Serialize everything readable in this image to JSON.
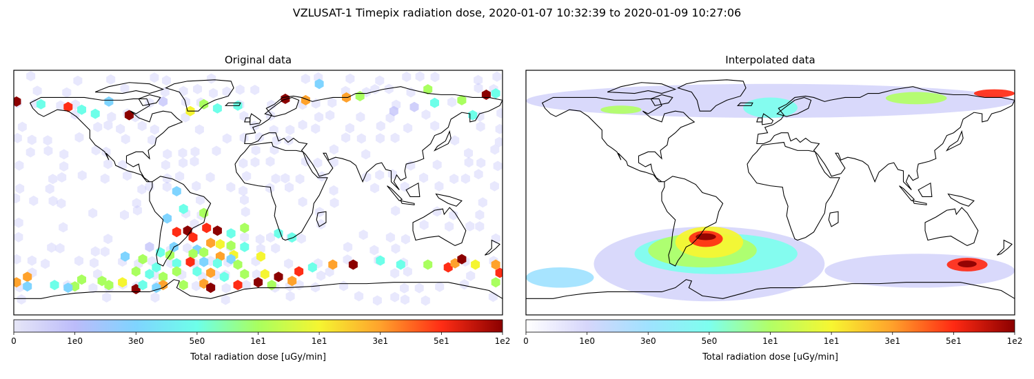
{
  "figure": {
    "suptitle": "VZLUSAT-1 Timepix radiation dose, 2020-01-07 10:32:39 to 2020-01-09 10:27:06"
  },
  "chart_data": [
    {
      "type": "heatmap",
      "title": "Original data",
      "xlim": [
        -180,
        180
      ],
      "ylim": [
        -90,
        90
      ],
      "projection": "plate-carree world map with coastlines",
      "marker": "hexagon",
      "colorbar": {
        "label": "Total radiation dose [uGy/min]",
        "tick_labels": [
          "0",
          "1e0",
          "3e0",
          "5e0",
          "1e1",
          "1e1",
          "3e1",
          "5e1",
          "1e2"
        ],
        "colormap": [
          "#e6e6f7",
          "#bcbcfa",
          "#7fd4ff",
          "#6dffe9",
          "#a9ff5f",
          "#f5f531",
          "#ffa22c",
          "#ff2d15",
          "#8b0000"
        ]
      },
      "points": [
        {
          "lon": -178,
          "lat": 67,
          "level": 8
        },
        {
          "lon": -160,
          "lat": 65,
          "level": 3
        },
        {
          "lon": -140,
          "lat": 63,
          "level": 7
        },
        {
          "lon": -130,
          "lat": 61,
          "level": 3
        },
        {
          "lon": -120,
          "lat": 58,
          "level": 3
        },
        {
          "lon": -110,
          "lat": 67,
          "level": 2
        },
        {
          "lon": -95,
          "lat": 57,
          "level": 8
        },
        {
          "lon": -70,
          "lat": 67,
          "level": 1
        },
        {
          "lon": -50,
          "lat": 60,
          "level": 5
        },
        {
          "lon": -40,
          "lat": 65,
          "level": 4
        },
        {
          "lon": -30,
          "lat": 62,
          "level": 3
        },
        {
          "lon": -15,
          "lat": 64,
          "level": 3
        },
        {
          "lon": 20,
          "lat": 69,
          "level": 8
        },
        {
          "lon": 35,
          "lat": 68,
          "level": 6
        },
        {
          "lon": 45,
          "lat": 80,
          "level": 2
        },
        {
          "lon": 65,
          "lat": 70,
          "level": 6
        },
        {
          "lon": 75,
          "lat": 71,
          "level": 4
        },
        {
          "lon": 100,
          "lat": 60,
          "level": 1
        },
        {
          "lon": 115,
          "lat": 63,
          "level": 1
        },
        {
          "lon": 125,
          "lat": 76,
          "level": 4
        },
        {
          "lon": 130,
          "lat": 66,
          "level": 3
        },
        {
          "lon": 150,
          "lat": 68,
          "level": 4
        },
        {
          "lon": 158,
          "lat": 57,
          "level": 3
        },
        {
          "lon": 168,
          "lat": 72,
          "level": 8
        },
        {
          "lon": 175,
          "lat": 73,
          "level": 3
        },
        {
          "lon": -60,
          "lat": 1,
          "level": 2
        },
        {
          "lon": -55,
          "lat": -12,
          "level": 3
        },
        {
          "lon": -67,
          "lat": -19,
          "level": 2
        },
        {
          "lon": -40,
          "lat": -15,
          "level": 4
        },
        {
          "lon": -60,
          "lat": -29,
          "level": 7
        },
        {
          "lon": -52,
          "lat": -28,
          "level": 8
        },
        {
          "lon": -48,
          "lat": -33,
          "level": 7
        },
        {
          "lon": -38,
          "lat": -26,
          "level": 7
        },
        {
          "lon": -30,
          "lat": -28,
          "level": 8
        },
        {
          "lon": -20,
          "lat": -30,
          "level": 3
        },
        {
          "lon": -10,
          "lat": -26,
          "level": 4
        },
        {
          "lon": 15,
          "lat": -30,
          "level": 3
        },
        {
          "lon": 25,
          "lat": -33,
          "level": 3
        },
        {
          "lon": -35,
          "lat": -37,
          "level": 6
        },
        {
          "lon": -28,
          "lat": -38,
          "level": 5
        },
        {
          "lon": -20,
          "lat": -39,
          "level": 4
        },
        {
          "lon": -10,
          "lat": -40,
          "level": 3
        },
        {
          "lon": -62,
          "lat": -40,
          "level": 2
        },
        {
          "lon": -45,
          "lat": -42,
          "level": 2
        },
        {
          "lon": -80,
          "lat": -40,
          "level": 1
        },
        {
          "lon": -72,
          "lat": -44,
          "level": 3
        },
        {
          "lon": -65,
          "lat": -46,
          "level": 4
        },
        {
          "lon": -48,
          "lat": -45,
          "level": 4
        },
        {
          "lon": -40,
          "lat": -44,
          "level": 4
        },
        {
          "lon": -28,
          "lat": -47,
          "level": 6
        },
        {
          "lon": -18,
          "lat": -46,
          "level": 5
        },
        {
          "lon": -50,
          "lat": -51,
          "level": 7
        },
        {
          "lon": -60,
          "lat": -52,
          "level": 3
        },
        {
          "lon": -40,
          "lat": -51,
          "level": 2
        },
        {
          "lon": -30,
          "lat": -52,
          "level": 3
        },
        {
          "lon": -20,
          "lat": -49,
          "level": 2
        },
        {
          "lon": -15,
          "lat": -53,
          "level": 4
        },
        {
          "lon": 2,
          "lat": -47,
          "level": 5
        },
        {
          "lon": -98,
          "lat": -47,
          "level": 2
        },
        {
          "lon": -85,
          "lat": -49,
          "level": 4
        },
        {
          "lon": -75,
          "lat": -55,
          "level": 3
        },
        {
          "lon": -90,
          "lat": -58,
          "level": 4
        },
        {
          "lon": -80,
          "lat": -60,
          "level": 3
        },
        {
          "lon": -70,
          "lat": -62,
          "level": 4
        },
        {
          "lon": -60,
          "lat": -58,
          "level": 4
        },
        {
          "lon": -45,
          "lat": -58,
          "level": 3
        },
        {
          "lon": -35,
          "lat": -59,
          "level": 6
        },
        {
          "lon": -25,
          "lat": -62,
          "level": 3
        },
        {
          "lon": -10,
          "lat": -60,
          "level": 4
        },
        {
          "lon": 5,
          "lat": -60,
          "level": 5
        },
        {
          "lon": 15,
          "lat": -62,
          "level": 8
        },
        {
          "lon": 30,
          "lat": -58,
          "level": 7
        },
        {
          "lon": 40,
          "lat": -55,
          "level": 3
        },
        {
          "lon": 55,
          "lat": -53,
          "level": 6
        },
        {
          "lon": 70,
          "lat": -53,
          "level": 8
        },
        {
          "lon": 90,
          "lat": -50,
          "level": 3
        },
        {
          "lon": 105,
          "lat": -53,
          "level": 3
        },
        {
          "lon": 125,
          "lat": -53,
          "level": 4
        },
        {
          "lon": 140,
          "lat": -55,
          "level": 7
        },
        {
          "lon": 145,
          "lat": -52,
          "level": 6
        },
        {
          "lon": 150,
          "lat": -49,
          "level": 8
        },
        {
          "lon": 160,
          "lat": -53,
          "level": 5
        },
        {
          "lon": 175,
          "lat": -53,
          "level": 6
        },
        {
          "lon": 178,
          "lat": -59,
          "level": 7
        },
        {
          "lon": -170,
          "lat": -62,
          "level": 6
        },
        {
          "lon": -178,
          "lat": -66,
          "level": 6
        },
        {
          "lon": -150,
          "lat": -68,
          "level": 3
        },
        {
          "lon": -115,
          "lat": -65,
          "level": 4
        },
        {
          "lon": -110,
          "lat": -68,
          "level": 4
        },
        {
          "lon": -100,
          "lat": -66,
          "level": 5
        },
        {
          "lon": -90,
          "lat": -71,
          "level": 8
        },
        {
          "lon": -85,
          "lat": -68,
          "level": 3
        },
        {
          "lon": -170,
          "lat": -69,
          "level": 2
        },
        {
          "lon": -130,
          "lat": -64,
          "level": 4
        },
        {
          "lon": -135,
          "lat": -69,
          "level": 4
        },
        {
          "lon": -70,
          "lat": -68,
          "level": 6
        },
        {
          "lon": -55,
          "lat": -68,
          "level": 4
        },
        {
          "lon": -40,
          "lat": -67,
          "level": 6
        },
        {
          "lon": -35,
          "lat": -70,
          "level": 8
        },
        {
          "lon": -15,
          "lat": -68,
          "level": 7
        },
        {
          "lon": 0,
          "lat": -66,
          "level": 8
        },
        {
          "lon": 10,
          "lat": -68,
          "level": 4
        },
        {
          "lon": 25,
          "lat": -65,
          "level": 6
        },
        {
          "lon": -75,
          "lat": -70,
          "level": 2
        },
        {
          "lon": -140,
          "lat": -70,
          "level": 2
        },
        {
          "lon": 175,
          "lat": -66,
          "level": 4
        }
      ]
    },
    {
      "type": "heatmap",
      "title": "Interpolated data",
      "xlim": [
        -180,
        180
      ],
      "ylim": [
        -90,
        90
      ],
      "projection": "plate-carree world map with coastlines",
      "colorbar": {
        "label": "Total radiation dose [uGy/min]",
        "tick_labels": [
          "0",
          "1e0",
          "3e0",
          "5e0",
          "1e1",
          "1e1",
          "3e1",
          "5e1",
          "1e2"
        ]
      },
      "regions": [
        {
          "lon": [
            -180,
            180
          ],
          "lat": [
            55,
            80
          ],
          "level": 1
        },
        {
          "lon": [
            -125,
            -95
          ],
          "lat": [
            58,
            64
          ],
          "level": 4
        },
        {
          "lon": [
            -20,
            20
          ],
          "lat": [
            55,
            70
          ],
          "level": 3
        },
        {
          "lon": [
            85,
            130
          ],
          "lat": [
            65,
            74
          ],
          "level": 4
        },
        {
          "lon": [
            150,
            180
          ],
          "lat": [
            70,
            76
          ],
          "level": 7
        },
        {
          "lon": [
            -130,
            40
          ],
          "lat": [
            -80,
            -25
          ],
          "level": 1
        },
        {
          "lon": [
            -100,
            20
          ],
          "lat": [
            -60,
            -30
          ],
          "level": 3
        },
        {
          "lon": [
            -90,
            -10
          ],
          "lat": [
            -55,
            -30
          ],
          "level": 4
        },
        {
          "lon": [
            -70,
            -20
          ],
          "lat": [
            -48,
            -25
          ],
          "level": 5
        },
        {
          "lon": [
            -60,
            -35
          ],
          "lat": [
            -40,
            -28
          ],
          "level": 7
        },
        {
          "lon": [
            -55,
            -40
          ],
          "lat": [
            -35,
            -30
          ],
          "level": 8
        },
        {
          "lon": [
            -180,
            -130
          ],
          "lat": [
            -70,
            -55
          ],
          "level": 2
        },
        {
          "lon": [
            40,
            180
          ],
          "lat": [
            -70,
            -45
          ],
          "level": 1
        },
        {
          "lon": [
            130,
            160
          ],
          "lat": [
            -58,
            -48
          ],
          "level": 7
        },
        {
          "lon": [
            138,
            152
          ],
          "lat": [
            -55,
            -50
          ],
          "level": 8
        }
      ]
    }
  ]
}
